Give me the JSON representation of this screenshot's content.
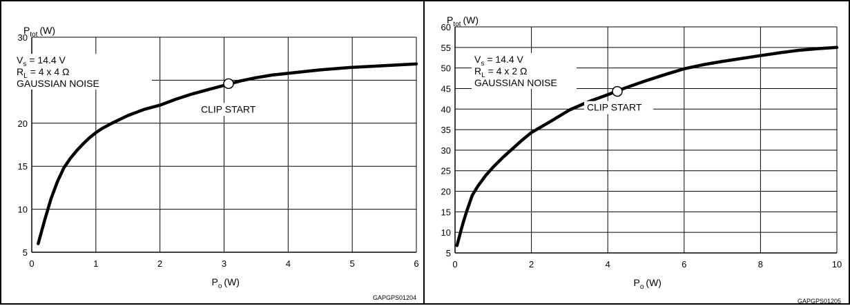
{
  "chart_data": [
    {
      "type": "line",
      "ylabel": "P",
      "ylabel_sub": "tot",
      "ylabel_unit": "(W)",
      "xlabel": "P",
      "xlabel_sub": "o",
      "xlabel_unit": "(W)",
      "xlim": [
        0,
        6
      ],
      "ylim": [
        5,
        30
      ],
      "xticks": [
        "0",
        "1",
        "2",
        "3",
        "4",
        "5",
        "6"
      ],
      "yticks": [
        "5",
        "10",
        "15",
        "20",
        "25",
        "30"
      ],
      "grid": true,
      "conditions": {
        "vs_sym": "V",
        "vs_sub": "s",
        "vs_val": "= 14.4 V",
        "rl_sym": "R",
        "rl_sub": "L",
        "rl_val": "= 4 x 4 Ω",
        "noise": "GAUSSIAN NOISE"
      },
      "series": [
        {
          "x": [
            0.1,
            0.2,
            0.3,
            0.4,
            0.5,
            0.6,
            0.7,
            0.8,
            0.9,
            1.0,
            1.1,
            1.25,
            1.5,
            1.75,
            2.0,
            2.25,
            2.5,
            2.75,
            3.0,
            3.25,
            3.5,
            3.75,
            4.0,
            4.5,
            5.0,
            5.5,
            6.0
          ],
          "y": [
            6.0,
            8.7,
            11.2,
            13.2,
            14.8,
            15.9,
            16.8,
            17.6,
            18.3,
            18.9,
            19.4,
            20.0,
            20.9,
            21.6,
            22.1,
            22.8,
            23.4,
            23.9,
            24.4,
            24.9,
            25.3,
            25.6,
            25.8,
            26.2,
            26.5,
            26.7,
            26.9
          ]
        }
      ],
      "marker": {
        "x": 3.07,
        "y": 24.6,
        "label": "CLIP START"
      },
      "code": "GAPGPS01204"
    },
    {
      "type": "line",
      "ylabel": "P",
      "ylabel_sub": "tot",
      "ylabel_unit": "(W)",
      "xlabel": "P",
      "xlabel_sub": "o",
      "xlabel_unit": "(W)",
      "xlim": [
        0,
        10
      ],
      "ylim": [
        5,
        60
      ],
      "xticks": [
        "0",
        "2",
        "4",
        "6",
        "8",
        "10"
      ],
      "yticks": [
        "5",
        "10",
        "15",
        "20",
        "25",
        "30",
        "35",
        "40",
        "45",
        "50",
        "55",
        "60"
      ],
      "grid": true,
      "conditions": {
        "vs_sym": "V",
        "vs_sub": "s",
        "vs_val": "= 14.4 V",
        "rl_sym": "R",
        "rl_sub": "L",
        "rl_val": "= 4 x 2 Ω",
        "noise": "GAUSSIAN NOISE"
      },
      "series": [
        {
          "x": [
            0.05,
            0.1,
            0.2,
            0.3,
            0.45,
            0.6,
            0.8,
            1.0,
            1.25,
            1.5,
            1.75,
            2.0,
            2.5,
            3.0,
            3.5,
            4.0,
            4.25,
            4.5,
            5.0,
            5.5,
            6.0,
            6.5,
            7.0,
            7.5,
            8.0,
            8.5,
            9.0,
            9.5,
            10.0
          ],
          "y": [
            6.8,
            8.5,
            12.0,
            15.0,
            19.0,
            21.3,
            23.8,
            25.9,
            28.2,
            30.3,
            32.4,
            34.3,
            37.0,
            39.8,
            41.8,
            43.5,
            44.4,
            45.3,
            46.9,
            48.4,
            49.8,
            50.8,
            51.6,
            52.3,
            53.0,
            53.7,
            54.3,
            54.7,
            55.0
          ]
        }
      ],
      "marker": {
        "x": 4.25,
        "y": 44.3,
        "label": "CLIP START"
      },
      "code": "GAPGPS01205"
    }
  ]
}
